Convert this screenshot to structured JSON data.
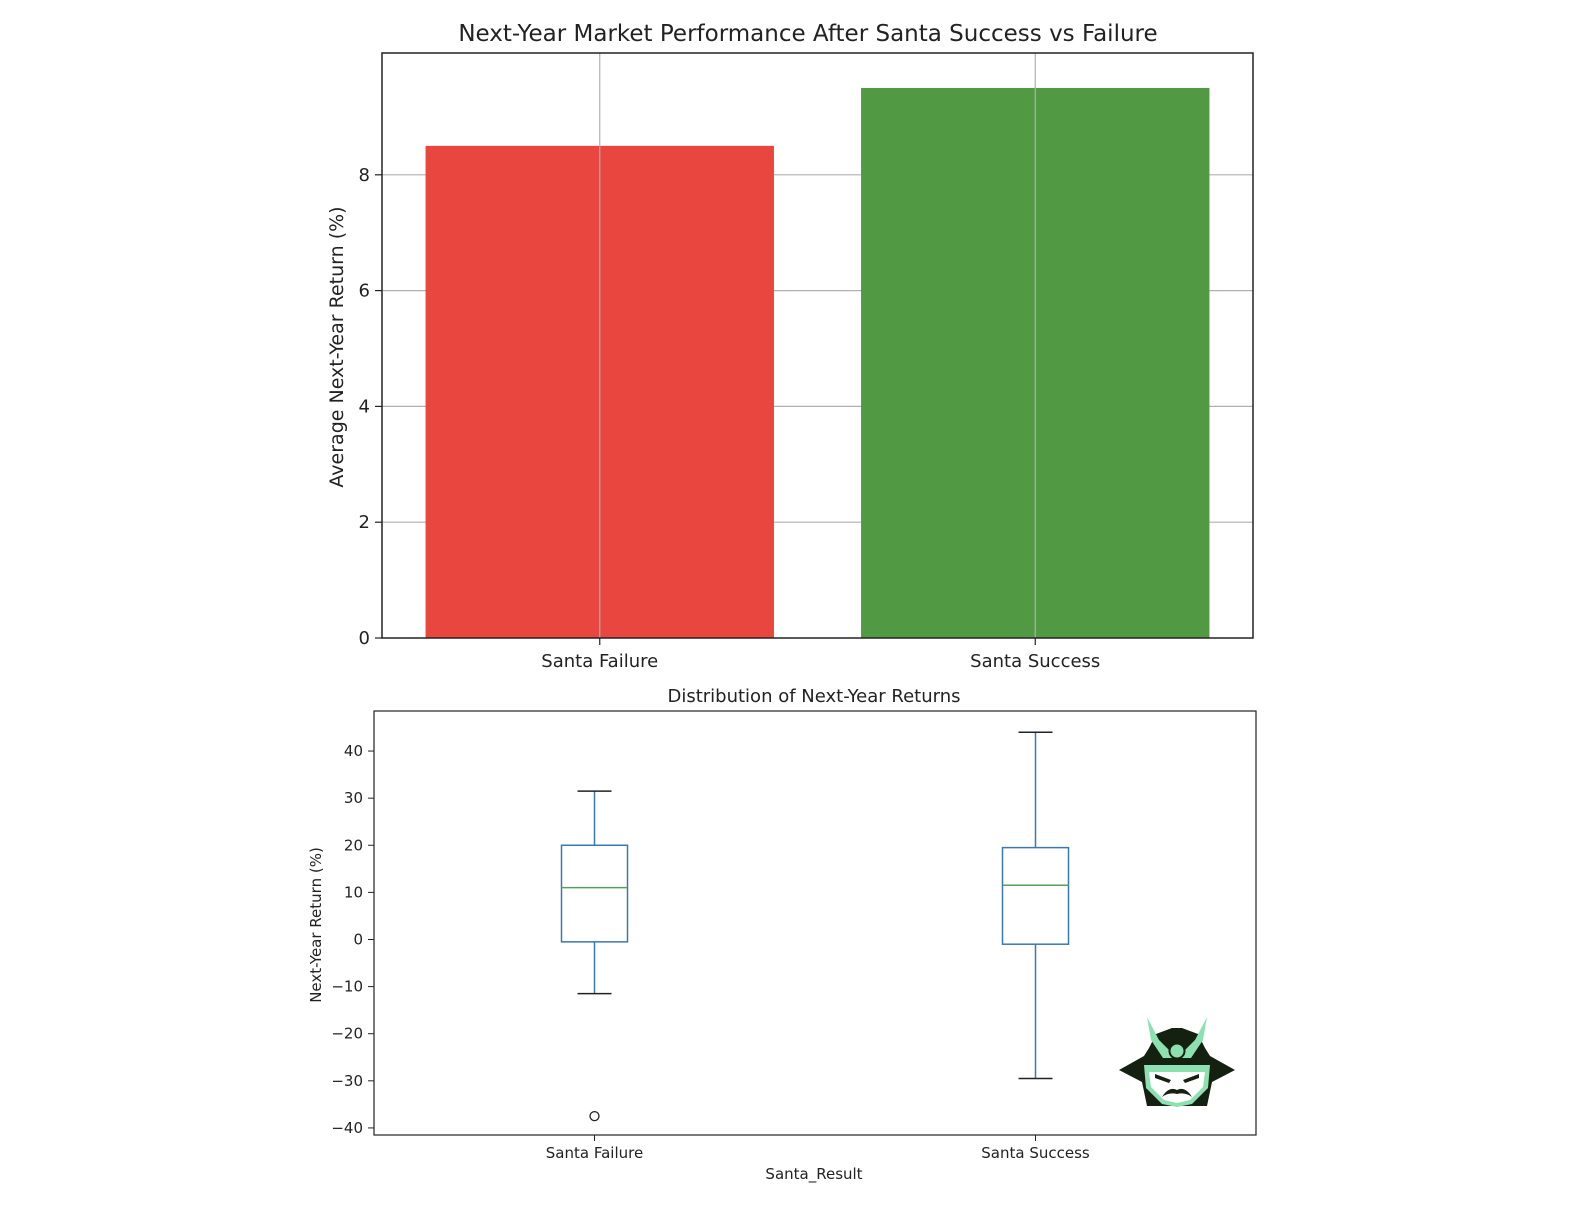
{
  "chart_data": [
    {
      "type": "bar",
      "title": "Next-Year Market Performance After Santa Success vs Failure",
      "xlabel": "",
      "ylabel": "Average Next-Year Return (%)",
      "categories": [
        "Santa Failure",
        "Santa Success"
      ],
      "values": [
        8.5,
        9.5
      ],
      "colors": [
        "#e8463f",
        "#529944"
      ],
      "ylim": [
        0,
        10
      ],
      "yticks": [
        0,
        2,
        4,
        6,
        8
      ],
      "grid": true
    },
    {
      "type": "box",
      "title": "Distribution of Next-Year Returns",
      "xlabel": "Santa_Result",
      "ylabel": "Next-Year Return (%)",
      "categories": [
        "Santa Failure",
        "Santa Success"
      ],
      "boxes": [
        {
          "whisker_low": -11.5,
          "q1": -0.5,
          "median": 11.0,
          "q3": 20.0,
          "whisker_high": 31.5,
          "outliers": [
            -37.5
          ]
        },
        {
          "whisker_low": -29.5,
          "q1": -1.0,
          "median": 11.5,
          "q3": 19.5,
          "whisker_high": 44.0,
          "outliers": []
        }
      ],
      "yticks": [
        -40,
        -30,
        -20,
        -10,
        0,
        10,
        20,
        30,
        40
      ],
      "ylim": [
        -41.5,
        48.5
      ],
      "grid": false,
      "colors": {
        "box": "#3a78b0",
        "median": "#55a055"
      }
    }
  ],
  "watermark": {
    "icon": "samurai-helmet-logo",
    "colors": {
      "dark": "#142010",
      "accent": "#8de0b0"
    }
  }
}
